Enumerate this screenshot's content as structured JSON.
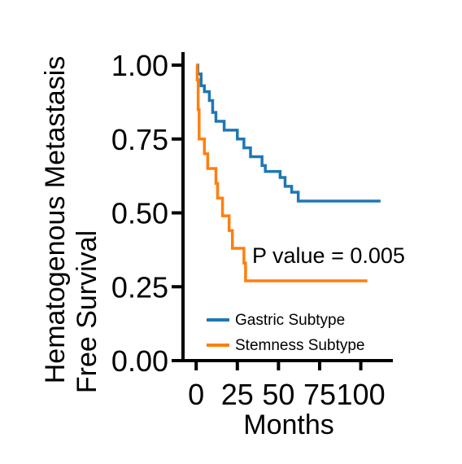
{
  "chart_data": {
    "type": "line",
    "subtype": "kaplan-meier step",
    "title": "",
    "xlabel": "Months",
    "ylabel_lines": [
      "Hematogenous Metastasis",
      "Free Survival"
    ],
    "xlim": [
      -8,
      118
    ],
    "ylim": [
      0,
      1.0
    ],
    "x_ticks": [
      0,
      25,
      50,
      75,
      100
    ],
    "x_tick_labels": [
      "0",
      "25",
      "50",
      "75",
      "100"
    ],
    "y_ticks": [
      0,
      0.25,
      0.5,
      0.75,
      1.0
    ],
    "y_tick_labels": [
      "0.00",
      "0.25",
      "0.50",
      "0.75",
      "1.00"
    ],
    "grid": false,
    "legend_position": "bottom-left",
    "annotation": "P value = 0.005",
    "series": [
      {
        "name": "Gastric Subtype",
        "color": "#1f77b4",
        "points": [
          [
            0,
            1.0
          ],
          [
            1,
            0.97
          ],
          [
            3,
            0.93
          ],
          [
            5,
            0.91
          ],
          [
            8,
            0.88
          ],
          [
            10,
            0.84
          ],
          [
            12,
            0.81
          ],
          [
            17,
            0.78
          ],
          [
            25,
            0.75
          ],
          [
            29,
            0.72
          ],
          [
            33,
            0.69
          ],
          [
            40,
            0.66
          ],
          [
            42,
            0.64
          ],
          [
            51,
            0.62
          ],
          [
            54,
            0.59
          ],
          [
            58,
            0.57
          ],
          [
            62,
            0.54
          ],
          [
            112,
            0.54
          ]
        ]
      },
      {
        "name": "Stemness Subtype",
        "color": "#ff7f0e",
        "points": [
          [
            0,
            1.0
          ],
          [
            0.6,
            0.95
          ],
          [
            1.2,
            0.85
          ],
          [
            1.8,
            0.75
          ],
          [
            5,
            0.7
          ],
          [
            7,
            0.65
          ],
          [
            12,
            0.6
          ],
          [
            13,
            0.55
          ],
          [
            16,
            0.49
          ],
          [
            20,
            0.44
          ],
          [
            22,
            0.38
          ],
          [
            29,
            0.33
          ],
          [
            30,
            0.27
          ],
          [
            104,
            0.27
          ]
        ]
      }
    ]
  }
}
